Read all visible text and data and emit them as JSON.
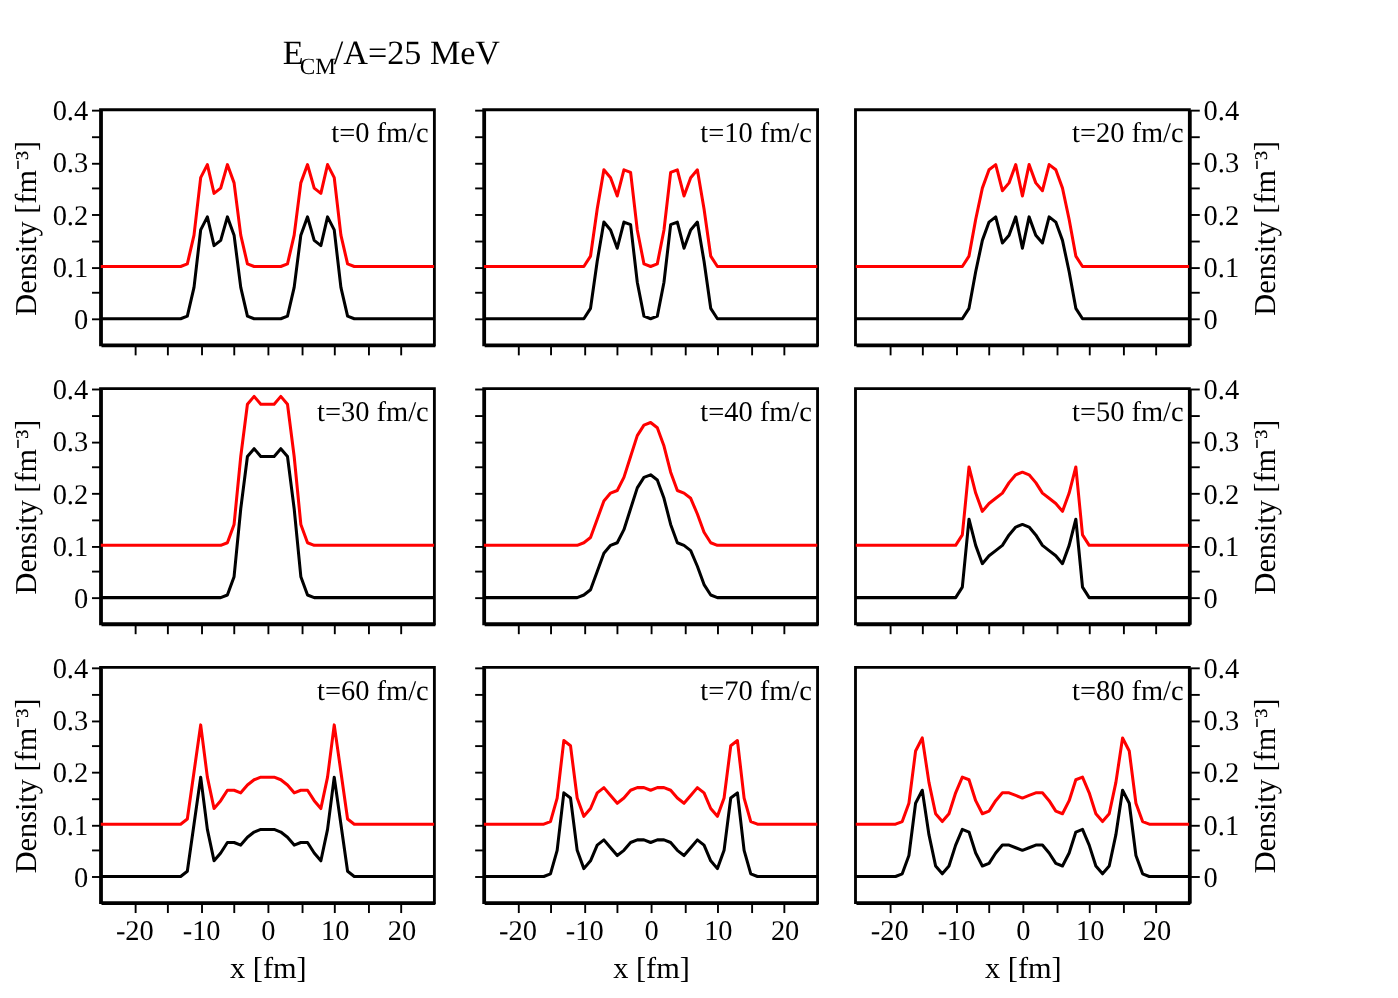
{
  "chart_data": [
    {
      "type": "line",
      "title": "E$_{CM}$/A=25 MeV",
      "ylabel": "Density [fm⁻³]",
      "annotations": [
        "t=0 fm/c"
      ],
      "tick_labels": "y",
      "xlim": [
        -25,
        25
      ],
      "ylim": [
        -0.05,
        0.4
      ],
      "xticks": [
        -20,
        {
          "value": -15,
          "label": null
        },
        -10,
        {
          "value": -5,
          "label": null
        },
        0,
        {
          "value": 5,
          "label": null
        },
        10,
        {
          "value": 15,
          "label": null
        },
        20
      ],
      "yticks": [
        0,
        {
          "value": 0.05,
          "label": null
        },
        0.1,
        {
          "value": 0.15,
          "label": null
        },
        0.2,
        {
          "value": 0.25,
          "label": null
        },
        0.3,
        {
          "value": 0.35,
          "label": null
        },
        0.4
      ],
      "x": [
        -25,
        -13,
        -12,
        -11,
        -10,
        -9,
        -8,
        -7,
        -6,
        -5,
        -4,
        -3,
        -2,
        -1,
        0,
        1,
        2,
        3,
        4,
        5,
        6,
        7,
        8,
        9,
        10,
        11,
        12,
        13,
        25
      ],
      "series": [
        {
          "color": "#000000",
          "values": [
            0,
            0,
            0.005,
            0.06,
            0.17,
            0.195,
            0.14,
            0.15,
            0.195,
            0.16,
            0.06,
            0.005,
            0,
            0,
            0,
            0,
            0,
            0.005,
            0.06,
            0.16,
            0.195,
            0.15,
            0.14,
            0.195,
            0.17,
            0.06,
            0.005,
            0,
            0
          ]
        },
        {
          "color": "#ff0000",
          "values": [
            0.1,
            0.1,
            0.105,
            0.16,
            0.27,
            0.295,
            0.24,
            0.25,
            0.295,
            0.26,
            0.16,
            0.105,
            0.1,
            0.1,
            0.1,
            0.1,
            0.1,
            0.105,
            0.16,
            0.26,
            0.295,
            0.25,
            0.24,
            0.295,
            0.27,
            0.16,
            0.105,
            0.1,
            0.1
          ]
        }
      ]
    },
    {
      "type": "line",
      "annotations": [
        "t=10 fm/c"
      ],
      "tick_labels": false,
      "xlim": [
        -25,
        25
      ],
      "ylim": [
        -0.05,
        0.4
      ],
      "xticks": [
        -20,
        {
          "value": -15,
          "label": null
        },
        -10,
        {
          "value": -5,
          "label": null
        },
        0,
        {
          "value": 5,
          "label": null
        },
        10,
        {
          "value": 15,
          "label": null
        },
        20
      ],
      "yticks": [
        0,
        {
          "value": 0.05,
          "label": null
        },
        0.1,
        {
          "value": 0.15,
          "label": null
        },
        0.2,
        {
          "value": 0.25,
          "label": null
        },
        0.3,
        {
          "value": 0.35,
          "label": null
        },
        0.4
      ],
      "x": [
        -25,
        -11,
        -10,
        -9,
        -8,
        -7,
        -6,
        -5,
        -4,
        -3,
        -2,
        -1,
        0,
        1,
        2,
        3,
        4,
        5,
        6,
        7,
        8,
        9,
        10,
        11,
        25
      ],
      "series": [
        {
          "color": "#000000",
          "values": [
            0,
            0,
            0,
            0.02,
            0.11,
            0.185,
            0.17,
            0.135,
            0.185,
            0.18,
            0.07,
            0.005,
            0,
            0.005,
            0.07,
            0.18,
            0.185,
            0.135,
            0.17,
            0.185,
            0.11,
            0.02,
            0,
            0,
            0
          ]
        },
        {
          "color": "#ff0000",
          "values": [
            0.1,
            0.1,
            0.1,
            0.12,
            0.21,
            0.285,
            0.27,
            0.235,
            0.285,
            0.28,
            0.17,
            0.105,
            0.1,
            0.105,
            0.17,
            0.28,
            0.285,
            0.235,
            0.27,
            0.285,
            0.21,
            0.12,
            0.1,
            0.1,
            0.1
          ]
        }
      ]
    },
    {
      "type": "line",
      "ylabel": "Density [fm⁻³]",
      "annotations": [
        "t=20 fm/c"
      ],
      "tick_labels": "y",
      "xlim": [
        -25,
        25
      ],
      "ylim": [
        -0.05,
        0.4
      ],
      "xticks": [
        -20,
        {
          "value": -15,
          "label": null
        },
        -10,
        {
          "value": -5,
          "label": null
        },
        0,
        {
          "value": 5,
          "label": null
        },
        10,
        {
          "value": 15,
          "label": null
        },
        20
      ],
      "yticks": [
        0,
        {
          "value": 0.05,
          "label": null
        },
        0.1,
        {
          "value": 0.15,
          "label": null
        },
        0.2,
        {
          "value": 0.25,
          "label": null
        },
        0.3,
        {
          "value": 0.35,
          "label": null
        },
        0.4
      ],
      "x": [
        -25,
        -9,
        -8,
        -7,
        -6,
        -5,
        -4,
        -3,
        -2,
        -1,
        0,
        1,
        2,
        3,
        4,
        5,
        6,
        7,
        8,
        9,
        25
      ],
      "series": [
        {
          "color": "#000000",
          "values": [
            0,
            0,
            0.02,
            0.09,
            0.15,
            0.185,
            0.195,
            0.145,
            0.16,
            0.195,
            0.135,
            0.195,
            0.16,
            0.145,
            0.195,
            0.185,
            0.15,
            0.09,
            0.02,
            0,
            0
          ]
        },
        {
          "color": "#ff0000",
          "values": [
            0.1,
            0.1,
            0.12,
            0.19,
            0.25,
            0.285,
            0.295,
            0.245,
            0.26,
            0.295,
            0.235,
            0.295,
            0.26,
            0.245,
            0.295,
            0.285,
            0.25,
            0.19,
            0.12,
            0.1,
            0.1
          ]
        }
      ]
    },
    {
      "type": "line",
      "ylabel": "Density [fm⁻³]",
      "annotations": [
        "t=30 fm/c"
      ],
      "tick_labels": "y",
      "xlim": [
        -25,
        25
      ],
      "ylim": [
        -0.05,
        0.4
      ],
      "xticks": [
        -20,
        {
          "value": -15,
          "label": null
        },
        -10,
        {
          "value": -5,
          "label": null
        },
        0,
        {
          "value": 5,
          "label": null
        },
        10,
        {
          "value": 15,
          "label": null
        },
        20
      ],
      "yticks": [
        0,
        {
          "value": 0.05,
          "label": null
        },
        0.1,
        {
          "value": 0.15,
          "label": null
        },
        0.2,
        {
          "value": 0.25,
          "label": null
        },
        0.3,
        {
          "value": 0.35,
          "label": null
        },
        0.4
      ],
      "x": [
        -25,
        -7,
        -6,
        -5,
        -4,
        -3,
        -2,
        -1,
        0,
        1,
        2,
        3,
        4,
        5,
        6,
        7,
        25
      ],
      "series": [
        {
          "color": "#000000",
          "values": [
            0,
            0,
            0.005,
            0.04,
            0.17,
            0.27,
            0.285,
            0.27,
            0.27,
            0.27,
            0.285,
            0.27,
            0.17,
            0.04,
            0.005,
            0,
            0
          ]
        },
        {
          "color": "#ff0000",
          "values": [
            0.1,
            0.1,
            0.105,
            0.14,
            0.27,
            0.37,
            0.385,
            0.37,
            0.37,
            0.37,
            0.385,
            0.37,
            0.27,
            0.14,
            0.105,
            0.1,
            0.1
          ]
        }
      ]
    },
    {
      "type": "line",
      "annotations": [
        "t=40 fm/c"
      ],
      "tick_labels": false,
      "xlim": [
        -25,
        25
      ],
      "ylim": [
        -0.05,
        0.4
      ],
      "xticks": [
        -20,
        {
          "value": -15,
          "label": null
        },
        -10,
        {
          "value": -5,
          "label": null
        },
        0,
        {
          "value": 5,
          "label": null
        },
        10,
        {
          "value": 15,
          "label": null
        },
        20
      ],
      "yticks": [
        0,
        {
          "value": 0.05,
          "label": null
        },
        0.1,
        {
          "value": 0.15,
          "label": null
        },
        0.2,
        {
          "value": 0.25,
          "label": null
        },
        0.3,
        {
          "value": 0.35,
          "label": null
        },
        0.4
      ],
      "x": [
        -25,
        -11,
        -10,
        -9,
        -8,
        -7,
        -6,
        -5,
        -4,
        -3,
        -2,
        -1,
        0,
        1,
        2,
        3,
        4,
        5,
        6,
        7,
        8,
        9,
        10,
        11,
        25
      ],
      "series": [
        {
          "color": "#000000",
          "values": [
            0,
            0,
            0.005,
            0.015,
            0.05,
            0.085,
            0.1,
            0.105,
            0.13,
            0.17,
            0.21,
            0.23,
            0.235,
            0.225,
            0.19,
            0.14,
            0.105,
            0.1,
            0.09,
            0.06,
            0.025,
            0.005,
            0,
            0,
            0
          ]
        },
        {
          "color": "#ff0000",
          "values": [
            0.1,
            0.1,
            0.105,
            0.115,
            0.15,
            0.185,
            0.2,
            0.205,
            0.23,
            0.27,
            0.31,
            0.33,
            0.335,
            0.325,
            0.29,
            0.24,
            0.205,
            0.2,
            0.19,
            0.16,
            0.125,
            0.105,
            0.1,
            0.1,
            0.1
          ]
        }
      ]
    },
    {
      "type": "line",
      "ylabel": "Density [fm⁻³]",
      "annotations": [
        "t=50 fm/c"
      ],
      "tick_labels": "y",
      "xlim": [
        -25,
        25
      ],
      "ylim": [
        -0.05,
        0.4
      ],
      "xticks": [
        -20,
        {
          "value": -15,
          "label": null
        },
        -10,
        {
          "value": -5,
          "label": null
        },
        0,
        {
          "value": 5,
          "label": null
        },
        10,
        {
          "value": 15,
          "label": null
        },
        20
      ],
      "yticks": [
        0,
        {
          "value": 0.05,
          "label": null
        },
        0.1,
        {
          "value": 0.15,
          "label": null
        },
        0.2,
        {
          "value": 0.25,
          "label": null
        },
        0.3,
        {
          "value": 0.35,
          "label": null
        },
        0.4
      ],
      "x": [
        -25,
        -10,
        -9,
        -8,
        -7,
        -6,
        -5,
        -4,
        -3,
        -2,
        -1,
        0,
        1,
        2,
        3,
        4,
        5,
        6,
        7,
        8,
        9,
        10,
        25
      ],
      "series": [
        {
          "color": "#000000",
          "values": [
            0,
            0,
            0.02,
            0.15,
            0.1,
            0.065,
            0.08,
            0.09,
            0.1,
            0.12,
            0.135,
            0.14,
            0.135,
            0.12,
            0.1,
            0.09,
            0.08,
            0.065,
            0.1,
            0.15,
            0.02,
            0,
            0
          ]
        },
        {
          "color": "#ff0000",
          "values": [
            0.1,
            0.1,
            0.12,
            0.25,
            0.2,
            0.165,
            0.18,
            0.19,
            0.2,
            0.22,
            0.235,
            0.24,
            0.235,
            0.22,
            0.2,
            0.19,
            0.18,
            0.165,
            0.2,
            0.25,
            0.12,
            0.1,
            0.1
          ]
        }
      ]
    },
    {
      "type": "line",
      "xlabel": "x [fm]",
      "ylabel": "Density [fm⁻³]",
      "annotations": [
        "t=60 fm/c"
      ],
      "xlim": [
        -25,
        25
      ],
      "ylim": [
        -0.05,
        0.4
      ],
      "xticks": [
        -20,
        {
          "value": -15,
          "label": null
        },
        -10,
        {
          "value": -5,
          "label": null
        },
        0,
        {
          "value": 5,
          "label": null
        },
        10,
        {
          "value": 15,
          "label": null
        },
        20
      ],
      "yticks": [
        0,
        {
          "value": 0.05,
          "label": null
        },
        0.1,
        {
          "value": 0.15,
          "label": null
        },
        0.2,
        {
          "value": 0.25,
          "label": null
        },
        0.3,
        {
          "value": 0.35,
          "label": null
        },
        0.4
      ],
      "x": [
        -25,
        -13,
        -12,
        -11,
        -10,
        -9,
        -8,
        -7,
        -6,
        -5,
        -4,
        -3,
        -2,
        -1,
        0,
        1,
        2,
        3,
        4,
        5,
        6,
        7,
        8,
        9,
        10,
        11,
        12,
        13,
        25
      ],
      "series": [
        {
          "color": "#000000",
          "values": [
            0,
            0,
            0.01,
            0.1,
            0.19,
            0.09,
            0.03,
            0.045,
            0.065,
            0.065,
            0.06,
            0.075,
            0.085,
            0.09,
            0.09,
            0.09,
            0.085,
            0.075,
            0.06,
            0.065,
            0.065,
            0.045,
            0.03,
            0.09,
            0.19,
            0.1,
            0.01,
            0,
            0
          ]
        },
        {
          "color": "#ff0000",
          "values": [
            0.1,
            0.1,
            0.11,
            0.2,
            0.29,
            0.19,
            0.13,
            0.145,
            0.165,
            0.165,
            0.16,
            0.175,
            0.185,
            0.19,
            0.19,
            0.19,
            0.185,
            0.175,
            0.16,
            0.165,
            0.165,
            0.145,
            0.13,
            0.19,
            0.29,
            0.2,
            0.11,
            0.1,
            0.1
          ]
        }
      ]
    },
    {
      "type": "line",
      "xlabel": "x [fm]",
      "annotations": [
        "t=70 fm/c"
      ],
      "tick_labels": "x",
      "xlim": [
        -25,
        25
      ],
      "ylim": [
        -0.05,
        0.4
      ],
      "xticks": [
        -20,
        {
          "value": -15,
          "label": null
        },
        -10,
        {
          "value": -5,
          "label": null
        },
        0,
        {
          "value": 5,
          "label": null
        },
        10,
        {
          "value": 15,
          "label": null
        },
        20
      ],
      "yticks": [
        0,
        {
          "value": 0.05,
          "label": null
        },
        0.1,
        {
          "value": 0.15,
          "label": null
        },
        0.2,
        {
          "value": 0.25,
          "label": null
        },
        0.3,
        {
          "value": 0.35,
          "label": null
        },
        0.4
      ],
      "x": [
        -25,
        -16,
        -15,
        -14,
        -13,
        -12,
        -11,
        -10,
        -9,
        -8,
        -7,
        -6,
        -5,
        -4,
        -3,
        -2,
        -1,
        0,
        1,
        2,
        3,
        4,
        5,
        6,
        7,
        8,
        9,
        10,
        11,
        12,
        13,
        14,
        15,
        16,
        25
      ],
      "series": [
        {
          "color": "#000000",
          "values": [
            0,
            0,
            0.005,
            0.05,
            0.16,
            0.15,
            0.05,
            0.015,
            0.03,
            0.06,
            0.07,
            0.055,
            0.04,
            0.05,
            0.065,
            0.07,
            0.07,
            0.065,
            0.07,
            0.07,
            0.065,
            0.05,
            0.04,
            0.055,
            0.07,
            0.06,
            0.03,
            0.015,
            0.05,
            0.15,
            0.16,
            0.05,
            0.005,
            0,
            0
          ]
        },
        {
          "color": "#ff0000",
          "values": [
            0.1,
            0.1,
            0.105,
            0.15,
            0.26,
            0.25,
            0.15,
            0.115,
            0.13,
            0.16,
            0.17,
            0.155,
            0.14,
            0.15,
            0.165,
            0.17,
            0.17,
            0.165,
            0.17,
            0.17,
            0.165,
            0.15,
            0.14,
            0.155,
            0.17,
            0.16,
            0.13,
            0.115,
            0.15,
            0.25,
            0.26,
            0.15,
            0.105,
            0.1,
            0.1
          ]
        }
      ]
    },
    {
      "type": "line",
      "xlabel": "x [fm]",
      "ylabel": "Density [fm⁻³]",
      "annotations": [
        "t=80 fm/c"
      ],
      "xlim": [
        -25,
        25
      ],
      "ylim": [
        -0.05,
        0.4
      ],
      "xticks": [
        -20,
        {
          "value": -15,
          "label": null
        },
        -10,
        {
          "value": -5,
          "label": null
        },
        0,
        {
          "value": 5,
          "label": null
        },
        10,
        {
          "value": 15,
          "label": null
        },
        20
      ],
      "yticks": [
        0,
        {
          "value": 0.05,
          "label": null
        },
        0.1,
        {
          "value": 0.15,
          "label": null
        },
        0.2,
        {
          "value": 0.25,
          "label": null
        },
        0.3,
        {
          "value": 0.35,
          "label": null
        },
        0.4
      ],
      "x": [
        -25,
        -19,
        -18,
        -17,
        -16,
        -15,
        -14,
        -13,
        -12,
        -11,
        -10,
        -9,
        -8,
        -7,
        -6,
        -5,
        -4,
        -3,
        -2,
        -1,
        0,
        1,
        2,
        3,
        4,
        5,
        6,
        7,
        8,
        9,
        10,
        11,
        12,
        13,
        14,
        15,
        16,
        17,
        18,
        19,
        25
      ],
      "series": [
        {
          "color": "#000000",
          "values": [
            0,
            0,
            0.005,
            0.04,
            0.14,
            0.165,
            0.08,
            0.02,
            0.005,
            0.02,
            0.06,
            0.09,
            0.085,
            0.045,
            0.02,
            0.025,
            0.045,
            0.06,
            0.06,
            0.055,
            0.05,
            0.055,
            0.06,
            0.06,
            0.045,
            0.025,
            0.02,
            0.045,
            0.085,
            0.09,
            0.06,
            0.02,
            0.005,
            0.02,
            0.08,
            0.165,
            0.14,
            0.04,
            0.005,
            0,
            0
          ]
        },
        {
          "color": "#ff0000",
          "values": [
            0.1,
            0.1,
            0.105,
            0.14,
            0.24,
            0.265,
            0.18,
            0.12,
            0.105,
            0.12,
            0.16,
            0.19,
            0.185,
            0.145,
            0.12,
            0.125,
            0.145,
            0.16,
            0.16,
            0.155,
            0.15,
            0.155,
            0.16,
            0.16,
            0.145,
            0.125,
            0.12,
            0.145,
            0.185,
            0.19,
            0.16,
            0.12,
            0.105,
            0.12,
            0.18,
            0.265,
            0.24,
            0.14,
            0.105,
            0.1,
            0.1
          ]
        }
      ]
    }
  ]
}
